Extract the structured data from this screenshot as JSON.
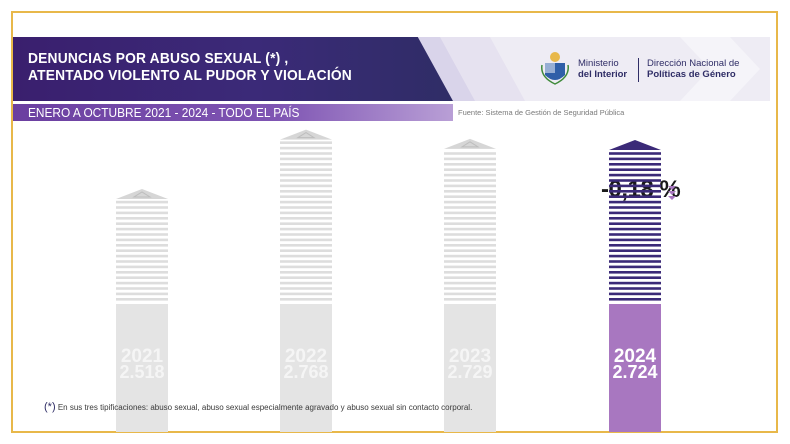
{
  "header": {
    "title_line1": "DENUNCIAS POR ABUSO SEXUAL (*) ,",
    "title_line2": "ATENTADO VIOLENTO AL PUDOR Y VIOLACIÓN",
    "subtitle": "ENERO A OCTUBRE 2021 - 2024 - TODO EL PAÍS",
    "source": "Fuente: Sistema de Gestión de Seguridad Pública"
  },
  "logos": {
    "ministry_line1": "Ministerio",
    "ministry_line2": "del Interior",
    "direction_line1": "Dirección Nacional de",
    "direction_line2": "Políticas de Género"
  },
  "change_label": "-0,18 %",
  "footnote": {
    "marker": "(*)",
    "text": " En sus tres tipificaciones: abuso sexual, abuso sexual especialmente agravado y abuso sexual sin contacto corporal."
  },
  "colors": {
    "dark_purple": "#3b2a78",
    "highlight": "#a877c0",
    "muted": "#e4e4e4",
    "accent_gold": "#e8b84a"
  },
  "chart_data": {
    "type": "bar",
    "categories": [
      "2021",
      "2022",
      "2023",
      "2024"
    ],
    "value_labels": [
      "2.518",
      "2.768",
      "2.729",
      "2.724"
    ],
    "values": [
      2518,
      2768,
      2729,
      2724
    ],
    "highlight_category": "2024",
    "ylim": [
      0,
      2800
    ]
  }
}
